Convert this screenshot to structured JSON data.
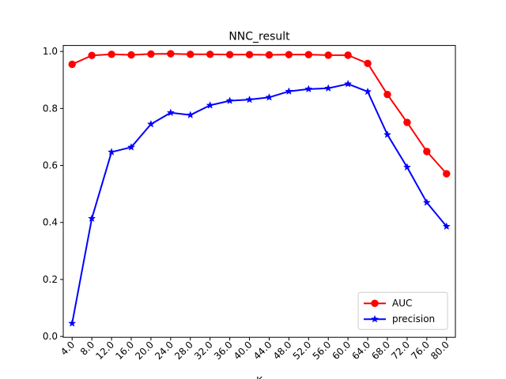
{
  "chart_data": {
    "type": "line",
    "title": "NNC_result",
    "xlabel": "K",
    "ylabel": "",
    "x": [
      4.0,
      8.0,
      12.0,
      16.0,
      20.0,
      24.0,
      28.0,
      32.0,
      36.0,
      40.0,
      44.0,
      48.0,
      52.0,
      56.0,
      60.0,
      64.0,
      68.0,
      72.0,
      76.0,
      80.0
    ],
    "x_tick_labels": [
      "4.0",
      "8.0",
      "12.0",
      "16.0",
      "20.0",
      "24.0",
      "28.0",
      "32.0",
      "36.0",
      "40.0",
      "44.0",
      "48.0",
      "52.0",
      "56.0",
      "60.0",
      "64.0",
      "68.0",
      "72.0",
      "76.0",
      "80.0"
    ],
    "y_ticks": [
      0.0,
      0.2,
      0.4,
      0.6,
      0.8,
      1.0
    ],
    "y_tick_labels": [
      "0.0",
      "0.2",
      "0.4",
      "0.6",
      "0.8",
      "1.0"
    ],
    "ylim": [
      -0.003,
      1.021
    ],
    "grid": false,
    "legend_position": "lower-right",
    "series": [
      {
        "name": "AUC",
        "color": "#ff0000",
        "marker": "circle",
        "values": [
          0.955,
          0.986,
          0.99,
          0.988,
          0.991,
          0.992,
          0.99,
          0.99,
          0.989,
          0.989,
          0.988,
          0.989,
          0.989,
          0.987,
          0.987,
          0.958,
          0.849,
          0.751,
          0.649,
          0.571
        ]
      },
      {
        "name": "precision",
        "color": "#0000ff",
        "marker": "star",
        "values": [
          0.046,
          0.414,
          0.647,
          0.664,
          0.745,
          0.785,
          0.777,
          0.811,
          0.827,
          0.831,
          0.839,
          0.86,
          0.868,
          0.871,
          0.886,
          0.859,
          0.708,
          0.594,
          0.47,
          0.386
        ]
      }
    ]
  }
}
